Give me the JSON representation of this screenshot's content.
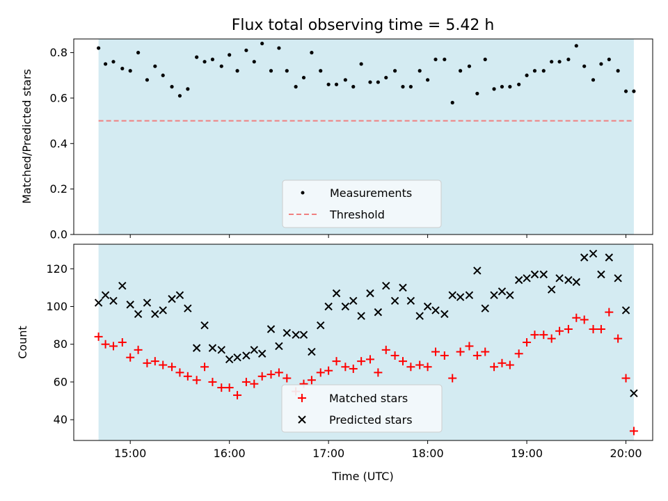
{
  "figure": {
    "title": "Flux total observing time = 5.42 h",
    "xlabel": "Time (UTC)",
    "xticks": [
      "15:00",
      "16:00",
      "17:00",
      "18:00",
      "19:00",
      "20:00"
    ]
  },
  "colors": {
    "shade": "#add8e6",
    "measurements": "#000000",
    "threshold": "#f08080",
    "matched": "#ff0000",
    "predicted": "#000000"
  },
  "chart_data": [
    {
      "type": "scatter",
      "ylabel": "Matched/Predicted stars",
      "ylim": [
        0,
        0.86
      ],
      "yticks": [
        "0.0",
        "0.2",
        "0.4",
        "0.6",
        "0.8"
      ],
      "xlim_hours": [
        14.43,
        20.27
      ],
      "shaded_span_hours": [
        14.68,
        20.08
      ],
      "threshold": 0.5,
      "legend": {
        "placement": "lower center",
        "entries": [
          "Measurements",
          "Threshold"
        ]
      },
      "series": [
        {
          "name": "Measurements",
          "x_hours": [
            14.68,
            14.75,
            14.83,
            14.92,
            15.0,
            15.08,
            15.17,
            15.25,
            15.33,
            15.42,
            15.5,
            15.58,
            15.67,
            15.75,
            15.83,
            15.92,
            16.0,
            16.08,
            16.17,
            16.25,
            16.33,
            16.42,
            16.5,
            16.58,
            16.67,
            16.75,
            16.83,
            16.92,
            17.0,
            17.08,
            17.17,
            17.25,
            17.33,
            17.42,
            17.5,
            17.58,
            17.67,
            17.75,
            17.83,
            17.92,
            18.0,
            18.08,
            18.17,
            18.25,
            18.33,
            18.42,
            18.5,
            18.58,
            18.67,
            18.75,
            18.83,
            18.92,
            19.0,
            19.08,
            19.17,
            19.25,
            19.33,
            19.42,
            19.5,
            19.58,
            19.67,
            19.75,
            19.83,
            19.92,
            20.0,
            20.08
          ],
          "y": [
            0.82,
            0.75,
            0.76,
            0.73,
            0.72,
            0.8,
            0.68,
            0.74,
            0.7,
            0.65,
            0.61,
            0.64,
            0.78,
            0.76,
            0.77,
            0.74,
            0.79,
            0.72,
            0.81,
            0.76,
            0.84,
            0.72,
            0.82,
            0.72,
            0.65,
            0.69,
            0.8,
            0.72,
            0.66,
            0.66,
            0.68,
            0.65,
            0.75,
            0.67,
            0.67,
            0.69,
            0.72,
            0.65,
            0.65,
            0.72,
            0.68,
            0.77,
            0.77,
            0.58,
            0.72,
            0.74,
            0.62,
            0.77,
            0.64,
            0.65,
            0.65,
            0.66,
            0.7,
            0.72,
            0.72,
            0.76,
            0.76,
            0.77,
            0.83,
            0.74,
            0.68,
            0.75,
            0.77,
            0.72,
            0.63,
            0.63
          ]
        }
      ]
    },
    {
      "type": "scatter",
      "ylabel": "Count",
      "ylim": [
        29,
        133
      ],
      "yticks": [
        "40",
        "60",
        "80",
        "100",
        "120"
      ],
      "xlim_hours": [
        14.43,
        20.27
      ],
      "shaded_span_hours": [
        14.68,
        20.08
      ],
      "legend": {
        "placement": "lower center",
        "entries": [
          "Matched stars",
          "Predicted stars"
        ]
      },
      "series": [
        {
          "name": "Matched stars",
          "marker": "plus",
          "x_hours": [
            14.68,
            14.75,
            14.83,
            14.92,
            15.0,
            15.08,
            15.17,
            15.25,
            15.33,
            15.42,
            15.5,
            15.58,
            15.67,
            15.75,
            15.83,
            15.92,
            16.0,
            16.08,
            16.17,
            16.25,
            16.33,
            16.42,
            16.5,
            16.58,
            16.67,
            16.75,
            16.83,
            16.92,
            17.0,
            17.08,
            17.17,
            17.25,
            17.33,
            17.42,
            17.5,
            17.58,
            17.67,
            17.75,
            17.83,
            17.92,
            18.0,
            18.08,
            18.17,
            18.25,
            18.33,
            18.42,
            18.5,
            18.58,
            18.67,
            18.75,
            18.83,
            18.92,
            19.0,
            19.08,
            19.17,
            19.25,
            19.33,
            19.42,
            19.5,
            19.58,
            19.67,
            19.75,
            19.83,
            19.92,
            20.0,
            20.08
          ],
          "y": [
            84,
            80,
            79,
            81,
            73,
            77,
            70,
            71,
            69,
            68,
            65,
            63,
            61,
            68,
            60,
            57,
            57,
            53,
            60,
            59,
            63,
            64,
            65,
            62,
            55,
            59,
            61,
            65,
            66,
            71,
            68,
            67,
            71,
            72,
            65,
            77,
            74,
            71,
            68,
            69,
            68,
            76,
            74,
            62,
            76,
            79,
            74,
            76,
            68,
            70,
            69,
            75,
            81,
            85,
            85,
            83,
            87,
            88,
            94,
            93,
            88,
            88,
            97,
            83,
            62,
            34
          ]
        },
        {
          "name": "Predicted stars",
          "marker": "x",
          "x_hours": [
            14.68,
            14.75,
            14.83,
            14.92,
            15.0,
            15.08,
            15.17,
            15.25,
            15.33,
            15.42,
            15.5,
            15.58,
            15.67,
            15.75,
            15.83,
            15.92,
            16.0,
            16.08,
            16.17,
            16.25,
            16.33,
            16.42,
            16.5,
            16.58,
            16.67,
            16.75,
            16.83,
            16.92,
            17.0,
            17.08,
            17.17,
            17.25,
            17.33,
            17.42,
            17.5,
            17.58,
            17.67,
            17.75,
            17.83,
            17.92,
            18.0,
            18.08,
            18.17,
            18.25,
            18.33,
            18.42,
            18.5,
            18.58,
            18.67,
            18.75,
            18.83,
            18.92,
            19.0,
            19.08,
            19.17,
            19.25,
            19.33,
            19.42,
            19.5,
            19.58,
            19.67,
            19.75,
            19.83,
            19.92,
            20.0,
            20.08
          ],
          "y": [
            102,
            106,
            103,
            111,
            101,
            96,
            102,
            96,
            98,
            104,
            106,
            99,
            78,
            90,
            78,
            77,
            72,
            73,
            74,
            77,
            75,
            88,
            79,
            86,
            85,
            85,
            76,
            90,
            100,
            107,
            100,
            103,
            95,
            107,
            97,
            111,
            103,
            110,
            103,
            95,
            100,
            98,
            96,
            106,
            105,
            106,
            119,
            99,
            106,
            108,
            106,
            114,
            115,
            117,
            117,
            109,
            115,
            114,
            113,
            126,
            128,
            117,
            126,
            115,
            98,
            54
          ]
        }
      ]
    }
  ]
}
